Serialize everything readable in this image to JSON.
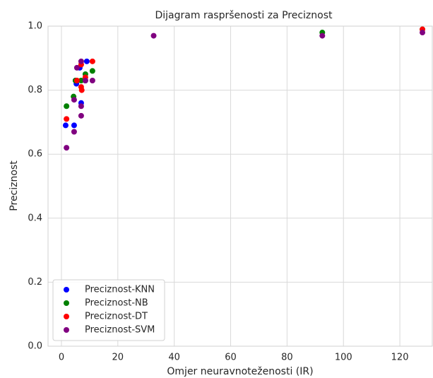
{
  "chart_data": {
    "type": "scatter",
    "title": "Dijagram raspršenosti za Preciznost",
    "xlabel": "Omjer neuravnoteženosti (IR)",
    "ylabel": "Preciznost",
    "xlim": [
      -4.75,
      131.5
    ],
    "ylim": [
      0,
      1.0
    ],
    "xticks": [
      0,
      20,
      40,
      60,
      80,
      100,
      120
    ],
    "yticks": [
      {
        "value": 0,
        "label": "0.0"
      },
      0.2,
      0.4,
      0.6,
      0.8,
      {
        "value": 1,
        "label": "1.0"
      }
    ],
    "grid": true,
    "legend": "lower left",
    "series": [
      {
        "name": "Preciznost-KNN",
        "color": "#0000ff",
        "x": [
          1.5,
          4.5,
          5.3,
          6.5,
          7,
          9,
          5,
          8.5
        ],
        "values": [
          0.69,
          0.69,
          0.82,
          0.87,
          0.76,
          0.89,
          0.83,
          0.83
        ]
      },
      {
        "name": "Preciznost-NB",
        "color": "#008000",
        "x": [
          1.8,
          4.3,
          5,
          7,
          8.5,
          11,
          92.5,
          128
        ],
        "values": [
          0.75,
          0.78,
          0.83,
          0.83,
          0.85,
          0.86,
          0.98,
          0.99
        ]
      },
      {
        "name": "Preciznost-DT",
        "color": "#ff0000",
        "x": [
          1.8,
          5.5,
          7,
          7.2,
          7,
          8.5,
          11,
          128
        ],
        "values": [
          0.71,
          0.83,
          0.81,
          0.8,
          0.88,
          0.84,
          0.89,
          0.99
        ]
      },
      {
        "name": "Preciznost-SVM",
        "color": "#800080",
        "x": [
          1.8,
          4.5,
          4.5,
          5.5,
          7,
          7,
          7,
          8.5,
          11,
          32.7,
          92.5,
          128
        ],
        "values": [
          0.62,
          0.67,
          0.77,
          0.87,
          0.72,
          0.75,
          0.89,
          0.83,
          0.83,
          0.97,
          0.97,
          0.98
        ]
      }
    ]
  }
}
